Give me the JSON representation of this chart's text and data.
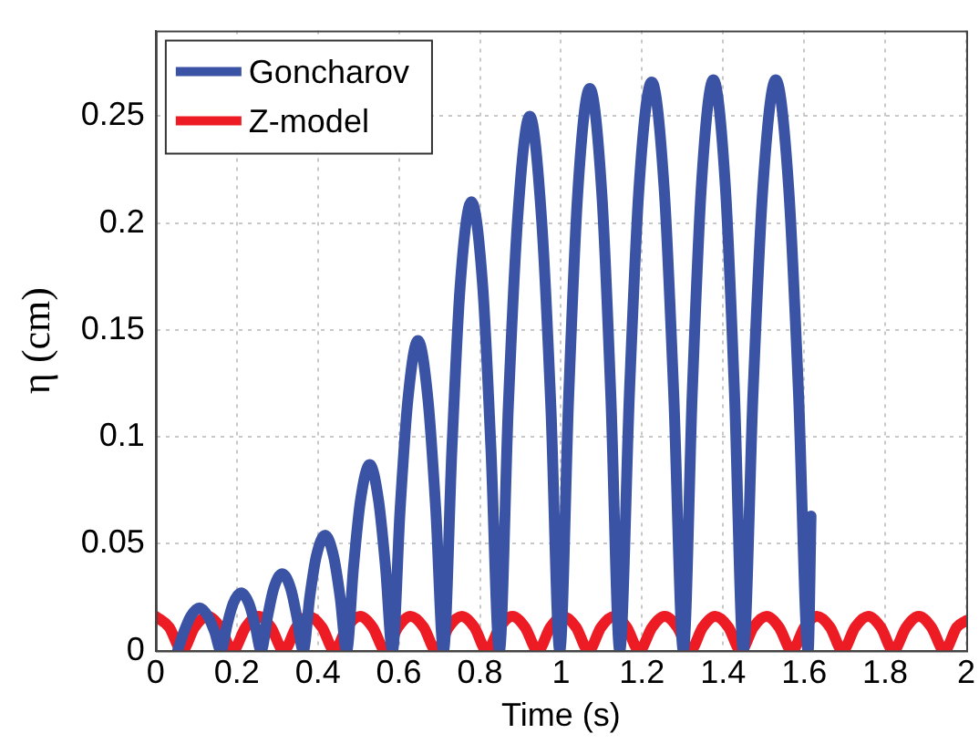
{
  "chart_data": {
    "type": "line",
    "xlabel": "Time (s)",
    "ylabel": "η (cm)",
    "xlim": [
      0,
      2
    ],
    "ylim": [
      0,
      0.29
    ],
    "xticks": [
      0,
      0.2,
      0.4,
      0.6,
      0.8,
      1,
      1.2,
      1.4,
      1.6,
      1.8,
      2
    ],
    "yticks": [
      0,
      0.05,
      0.1,
      0.15,
      0.2,
      0.25
    ],
    "grid": true,
    "legend": "top left",
    "line_style": "solid",
    "series": [
      {
        "name": "Goncharov",
        "color": "#3a53a4",
        "x": [
          0.054,
          0.07,
          0.086,
          0.108,
          0.129,
          0.145,
          0.161,
          0.176,
          0.191,
          0.211,
          0.23,
          0.245,
          0.26,
          0.276,
          0.291,
          0.312,
          0.333,
          0.348,
          0.364,
          0.38,
          0.396,
          0.418,
          0.439,
          0.455,
          0.471,
          0.488,
          0.505,
          0.528,
          0.55,
          0.567,
          0.584,
          0.603,
          0.622,
          0.647,
          0.672,
          0.691,
          0.71,
          0.731,
          0.751,
          0.779,
          0.807,
          0.827,
          0.848,
          0.87,
          0.893,
          0.923,
          0.952,
          0.975,
          0.997,
          1.019,
          1.041,
          1.071,
          1.101,
          1.123,
          1.145,
          1.169,
          1.192,
          1.224,
          1.255,
          1.278,
          1.302,
          1.324,
          1.346,
          1.376,
          1.406,
          1.428,
          1.45,
          1.474,
          1.498,
          1.53,
          1.562,
          1.586,
          1.61,
          1.617
        ],
        "values": [
          0,
          0.009,
          0.016,
          0.02,
          0.016,
          0.009,
          0,
          0.012,
          0.022,
          0.027,
          0.022,
          0.012,
          0,
          0.016,
          0.029,
          0.036,
          0.029,
          0.016,
          0,
          0.025,
          0.044,
          0.054,
          0.044,
          0.025,
          0,
          0.039,
          0.07,
          0.087,
          0.07,
          0.039,
          0,
          0.066,
          0.117,
          0.145,
          0.117,
          0.066,
          0,
          0.095,
          0.17,
          0.21,
          0.17,
          0.095,
          0,
          0.114,
          0.202,
          0.25,
          0.202,
          0.114,
          0,
          0.119,
          0.213,
          0.263,
          0.213,
          0.119,
          0,
          0.121,
          0.215,
          0.266,
          0.215,
          0.121,
          0,
          0.121,
          0.216,
          0.267,
          0.216,
          0.121,
          0,
          0.121,
          0.216,
          0.267,
          0.216,
          0.121,
          0,
          0.063
        ]
      },
      {
        "name": "Z-model",
        "color": "#ed1c24",
        "x": [
          0,
          0.033,
          0.065,
          0.096,
          0.128,
          0.159,
          0.19,
          0.222,
          0.253,
          0.284,
          0.316,
          0.347,
          0.378,
          0.41,
          0.441,
          0.472,
          0.504,
          0.535,
          0.567,
          0.598,
          0.629,
          0.661,
          0.692,
          0.723,
          0.755,
          0.786,
          0.817,
          0.849,
          0.88,
          0.911,
          0.943,
          0.974,
          1.005,
          1.037,
          1.068,
          1.099,
          1.131,
          1.162,
          1.193,
          1.225,
          1.256,
          1.287,
          1.319,
          1.35,
          1.381,
          1.413,
          1.444,
          1.475,
          1.507,
          1.538,
          1.57,
          1.601,
          1.632,
          1.664,
          1.695,
          1.726,
          1.758,
          1.789,
          1.82,
          1.852,
          1.883,
          1.914,
          1.946,
          1.977,
          2
        ],
        "values": [
          0.016,
          0.011,
          0,
          0.011,
          0.016,
          0.011,
          0,
          0.011,
          0.016,
          0.011,
          0,
          0.011,
          0.016,
          0.011,
          0,
          0.011,
          0.016,
          0.011,
          0,
          0.011,
          0.016,
          0.011,
          0,
          0.011,
          0.016,
          0.011,
          0,
          0.011,
          0.016,
          0.011,
          0,
          0.011,
          0.016,
          0.011,
          0,
          0.011,
          0.016,
          0.011,
          0,
          0.011,
          0.016,
          0.011,
          0,
          0.011,
          0.016,
          0.011,
          0,
          0.011,
          0.016,
          0.011,
          0,
          0.011,
          0.016,
          0.011,
          0,
          0.011,
          0.016,
          0.011,
          0,
          0.011,
          0.016,
          0.011,
          0,
          0.011,
          0.014
        ]
      }
    ]
  }
}
